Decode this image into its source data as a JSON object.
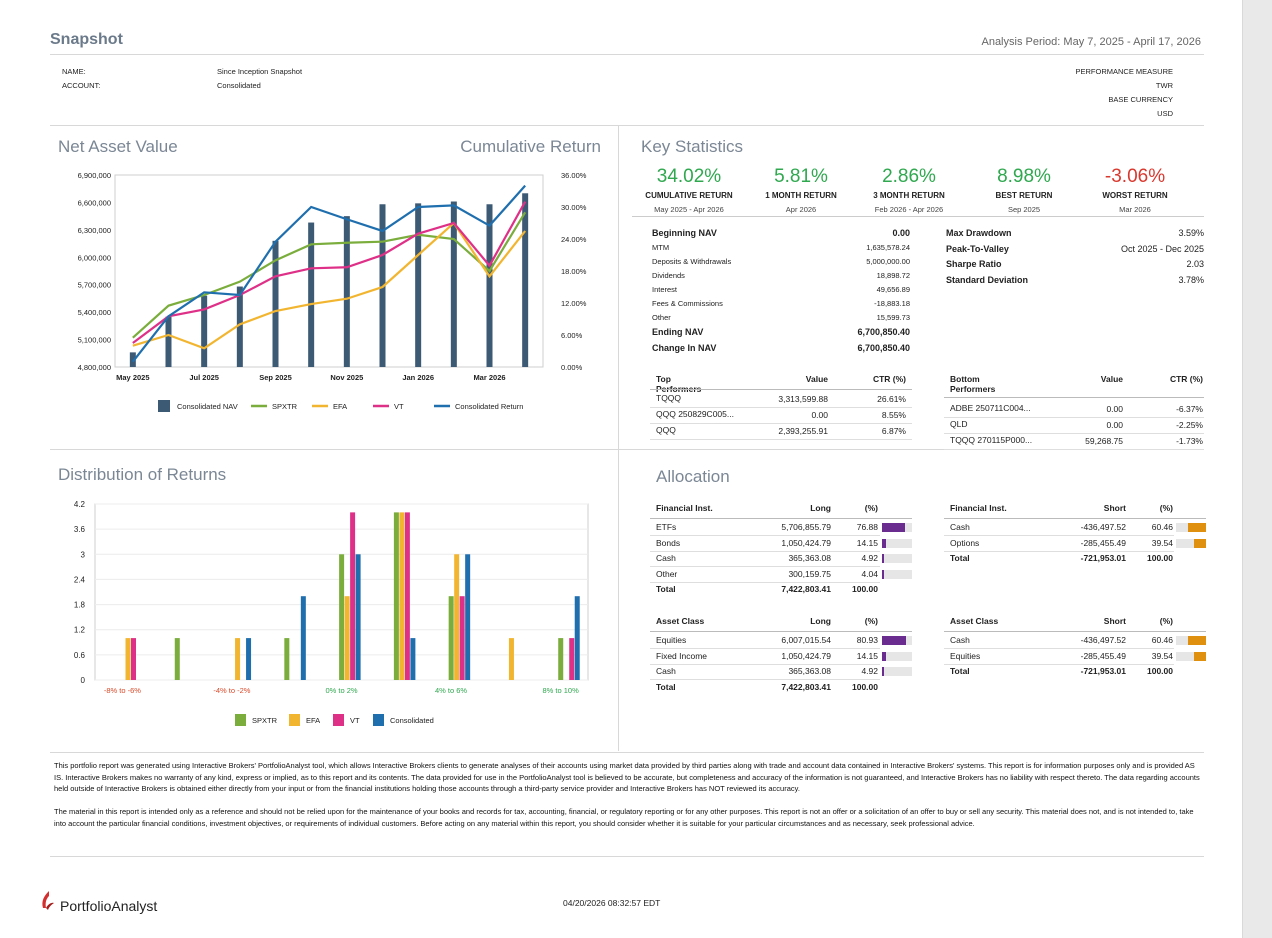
{
  "header": {
    "title": "Snapshot",
    "period": "Analysis Period: May 7, 2025 - April 17, 2026",
    "name_label": "NAME:",
    "name_value": "Since Inception Snapshot",
    "account_label": "ACCOUNT:",
    "account_value": "Consolidated",
    "perf_label": "PERFORMANCE MEASURE",
    "perf_value": "TWR",
    "currency_label": "BASE CURRENCY",
    "currency_value": "USD"
  },
  "nav": {
    "title_left": "Net Asset Value",
    "title_right": "Cumulative Return"
  },
  "chart_data": [
    {
      "type": "bar+line",
      "title": "Net Asset Value / Cumulative Return",
      "categories": [
        "May 2025",
        "Jun 2025",
        "Jul 2025",
        "Aug 2025",
        "Sep 2025",
        "Oct 2025",
        "Nov 2025",
        "Dec 2025",
        "Jan 2026",
        "Feb 2026",
        "Mar 2026",
        "Apr 2026"
      ],
      "x_tick_labels": [
        "May 2025",
        "Jul 2025",
        "Sep 2025",
        "Nov 2025",
        "Jan 2026",
        "Mar 2026"
      ],
      "y_left_ticks": [
        "6,900,000",
        "6,600,000",
        "6,300,000",
        "6,000,000",
        "5,700,000",
        "5,400,000",
        "5,100,000",
        "4,800,000"
      ],
      "y_left_range": [
        4800000,
        6900000
      ],
      "y_right_ticks": [
        "36.00%",
        "30.00%",
        "24.00%",
        "18.00%",
        "12.00%",
        "6.00%",
        "0.00%"
      ],
      "y_right_range": [
        0,
        36
      ],
      "nav_bars": [
        4960000,
        5350000,
        5580000,
        5680000,
        6180000,
        6380000,
        6450000,
        6580000,
        6590000,
        6610000,
        6580000,
        6700000
      ],
      "series": [
        {
          "name": "SPXTR",
          "color": "#7aad3c",
          "values": [
            5.5,
            11.5,
            13.5,
            16.0,
            20.0,
            23.0,
            23.3,
            23.5,
            24.8,
            24.0,
            18.0,
            29.0
          ]
        },
        {
          "name": "EFA",
          "color": "#f2b530",
          "values": [
            4.0,
            6.0,
            3.5,
            8.0,
            10.5,
            11.8,
            12.8,
            15.0,
            21.0,
            27.0,
            17.0,
            25.5
          ]
        },
        {
          "name": "VT",
          "color": "#df3088",
          "values": [
            4.5,
            9.5,
            10.8,
            13.5,
            17.0,
            18.5,
            18.7,
            21.0,
            25.0,
            27.0,
            19.0,
            31.0
          ]
        },
        {
          "name": "Consolidated Return",
          "color": "#1f6fae",
          "values": [
            1.0,
            9.5,
            14.0,
            13.5,
            23.5,
            30.0,
            27.7,
            25.5,
            30.0,
            30.3,
            26.5,
            34.0
          ]
        }
      ],
      "legend": [
        "Consolidated NAV",
        "SPXTR",
        "EFA",
        "VT",
        "Consolidated Return"
      ],
      "legend_colors": [
        "#3d5a74",
        "#7aad3c",
        "#f2b530",
        "#df3088",
        "#1f6fae"
      ]
    },
    {
      "type": "bar",
      "title": "Distribution of Returns",
      "y_ticks": [
        "4.2",
        "3.6",
        "3",
        "2.4",
        "1.8",
        "1.2",
        "0.6",
        "0"
      ],
      "ylim": [
        0,
        4.2
      ],
      "categories": [
        "-8% to -6%",
        "-6% to -4%",
        "-4% to -2%",
        "-2% to 0%",
        "0% to 2%",
        "2% to 4%",
        "4% to 6%",
        "6% to 8%",
        "8% to 10%"
      ],
      "x_tick_labels": [
        "-8% to -6%",
        "-4% to -2%",
        "0% to 2%",
        "4% to 6%",
        "8% to 10%"
      ],
      "x_tick_colors": [
        "#d94a2a",
        "#d94a2a",
        "#2fa84f",
        "#2fa84f",
        "#2fa84f"
      ],
      "series": [
        {
          "name": "SPXTR",
          "color": "#7aad3c",
          "values": [
            0,
            1,
            0,
            1,
            3,
            4,
            2,
            0,
            1
          ]
        },
        {
          "name": "EFA",
          "color": "#f2b530",
          "values": [
            1,
            0,
            1,
            0,
            2,
            4,
            3,
            1,
            0
          ]
        },
        {
          "name": "VT",
          "color": "#df3088",
          "values": [
            1,
            0,
            0,
            0,
            4,
            4,
            2,
            0,
            1
          ]
        },
        {
          "name": "Consolidated",
          "color": "#1f6fae",
          "values": [
            0,
            0,
            1,
            2,
            3,
            1,
            3,
            0,
            2
          ]
        }
      ],
      "legend": [
        "SPXTR",
        "EFA",
        "VT",
        "Consolidated"
      ]
    }
  ],
  "key_stats": {
    "title": "Key Statistics",
    "cards": [
      {
        "value": "34.02%",
        "label": "CUMULATIVE RETURN",
        "sub": "May 2025 - Apr 2026",
        "color": "#2fa84f"
      },
      {
        "value": "5.81%",
        "label": "1 MONTH RETURN",
        "sub": "Apr 2026",
        "color": "#2fa84f"
      },
      {
        "value": "2.86%",
        "label": "3 MONTH RETURN",
        "sub": "Feb 2026 - Apr 2026",
        "color": "#2fa84f"
      },
      {
        "value": "8.98%",
        "label": "BEST RETURN",
        "sub": "Sep 2025",
        "color": "#2fa84f"
      },
      {
        "value": "-3.06%",
        "label": "WORST RETURN",
        "sub": "Mar 2026",
        "color": "#d9382e"
      }
    ],
    "nav_rows": [
      {
        "label": "Beginning NAV",
        "value": "0.00",
        "bold": true
      },
      {
        "label": "MTM",
        "value": "1,635,578.24",
        "bold": false
      },
      {
        "label": "Deposits & Withdrawals",
        "value": "5,000,000.00",
        "bold": false
      },
      {
        "label": "Dividends",
        "value": "18,898.72",
        "bold": false
      },
      {
        "label": "Interest",
        "value": "49,656.89",
        "bold": false
      },
      {
        "label": "Fees & Commissions",
        "value": "-18,883.18",
        "bold": false
      },
      {
        "label": "Other",
        "value": "15,599.73",
        "bold": false
      },
      {
        "label": "Ending NAV",
        "value": "6,700,850.40",
        "bold": true
      },
      {
        "label": "Change In NAV",
        "value": "6,700,850.40",
        "bold": true
      }
    ],
    "risk_rows": [
      {
        "label": "Max Drawdown",
        "value": "3.59%"
      },
      {
        "label": "Peak-To-Valley",
        "value": "Oct 2025 - Dec 2025"
      },
      {
        "label": "Sharpe Ratio",
        "value": "2.03"
      },
      {
        "label": "Standard Deviation",
        "value": "3.78%"
      }
    ]
  },
  "top_performers": {
    "headers": [
      "Top Performers",
      "Value",
      "CTR (%)"
    ],
    "rows": [
      {
        "name": "TQQQ",
        "value": "3,313,599.88",
        "ctr": "26.61%"
      },
      {
        "name": "QQQ 250829C005...",
        "value": "0.00",
        "ctr": "8.55%"
      },
      {
        "name": "QQQ",
        "value": "2,393,255.91",
        "ctr": "6.87%"
      }
    ]
  },
  "bottom_performers": {
    "headers": [
      "Bottom Performers",
      "Value",
      "CTR (%)"
    ],
    "rows": [
      {
        "name": "ADBE  250711C004...",
        "value": "0.00",
        "ctr": "-6.37%"
      },
      {
        "name": "QLD",
        "value": "0.00",
        "ctr": "-2.25%"
      },
      {
        "name": "TQQQ 270115P000...",
        "value": "59,268.75",
        "ctr": "-1.73%"
      }
    ]
  },
  "allocation": {
    "title": "Allocation",
    "long_fin": {
      "headers": [
        "Financial Inst.",
        "Long",
        "(%)"
      ],
      "rows": [
        {
          "name": "ETFs",
          "value": "5,706,855.79",
          "pct": "76.88",
          "frac": 0.7688
        },
        {
          "name": "Bonds",
          "value": "1,050,424.79",
          "pct": "14.15",
          "frac": 0.1415
        },
        {
          "name": "Cash",
          "value": "365,363.08",
          "pct": "4.92",
          "frac": 0.0492
        },
        {
          "name": "Other",
          "value": "300,159.75",
          "pct": "4.04",
          "frac": 0.0404
        }
      ],
      "total_label": "Total",
      "total_value": "7,422,803.41",
      "total_pct": "100.00"
    },
    "short_fin": {
      "headers": [
        "Financial Inst.",
        "Short",
        "(%)"
      ],
      "rows": [
        {
          "name": "Cash",
          "value": "-436,497.52",
          "pct": "60.46",
          "frac": 0.6046
        },
        {
          "name": "Options",
          "value": "-285,455.49",
          "pct": "39.54",
          "frac": 0.3954
        }
      ],
      "total_label": "Total",
      "total_value": "-721,953.01",
      "total_pct": "100.00"
    },
    "long_asset": {
      "headers": [
        "Asset Class",
        "Long",
        "(%)"
      ],
      "rows": [
        {
          "name": "Equities",
          "value": "6,007,015.54",
          "pct": "80.93",
          "frac": 0.8093
        },
        {
          "name": "Fixed Income",
          "value": "1,050,424.79",
          "pct": "14.15",
          "frac": 0.1415
        },
        {
          "name": "Cash",
          "value": "365,363.08",
          "pct": "4.92",
          "frac": 0.0492
        }
      ],
      "total_label": "Total",
      "total_value": "7,422,803.41",
      "total_pct": "100.00"
    },
    "short_asset": {
      "headers": [
        "Asset Class",
        "Short",
        "(%)"
      ],
      "rows": [
        {
          "name": "Cash",
          "value": "-436,497.52",
          "pct": "60.46",
          "frac": 0.6046
        },
        {
          "name": "Equities",
          "value": "-285,455.49",
          "pct": "39.54",
          "frac": 0.3954
        }
      ],
      "total_label": "Total",
      "total_value": "-721,953.01",
      "total_pct": "100.00"
    },
    "long_color": "#6a2c8e",
    "short_color": "#e0900f"
  },
  "disclaimer": {
    "p1": "This portfolio report was generated using Interactive Brokers' PortfolioAnalyst tool, which allows Interactive Brokers clients to generate analyses of their accounts using market data provided by third parties along with trade and account data contained in Interactive Brokers' systems. This report is for information purposes only and is provided AS IS. Interactive Brokers makes no warranty of any kind, express or implied, as to this report and its contents. The data provided for use in the PortfolioAnalyst tool is believed to be accurate, but completeness and accuracy of the information is not guaranteed, and Interactive Brokers has no liability with respect thereto. The data regarding accounts held outside of Interactive Brokers is obtained either directly from your input or from the financial institutions holding those accounts through a third-party service provider and Interactive Brokers has NOT reviewed its accuracy.",
    "p2": "The material in this report is intended only as a reference and should not be relied upon for the maintenance of your books and records for tax, accounting, financial, or regulatory reporting or for any other purposes. This report is not an offer or a solicitation of an offer to buy or sell any security. This material does not, and is not intended to, take into account the particular financial conditions, investment objectives, or requirements of individual customers. Before acting on any material within this report, you should consider whether it is suitable for your particular circumstances and as necessary, seek professional advice."
  },
  "footer": {
    "brand": "PortfolioAnalyst",
    "timestamp": "04/20/2026 08:32:57 EDT"
  }
}
